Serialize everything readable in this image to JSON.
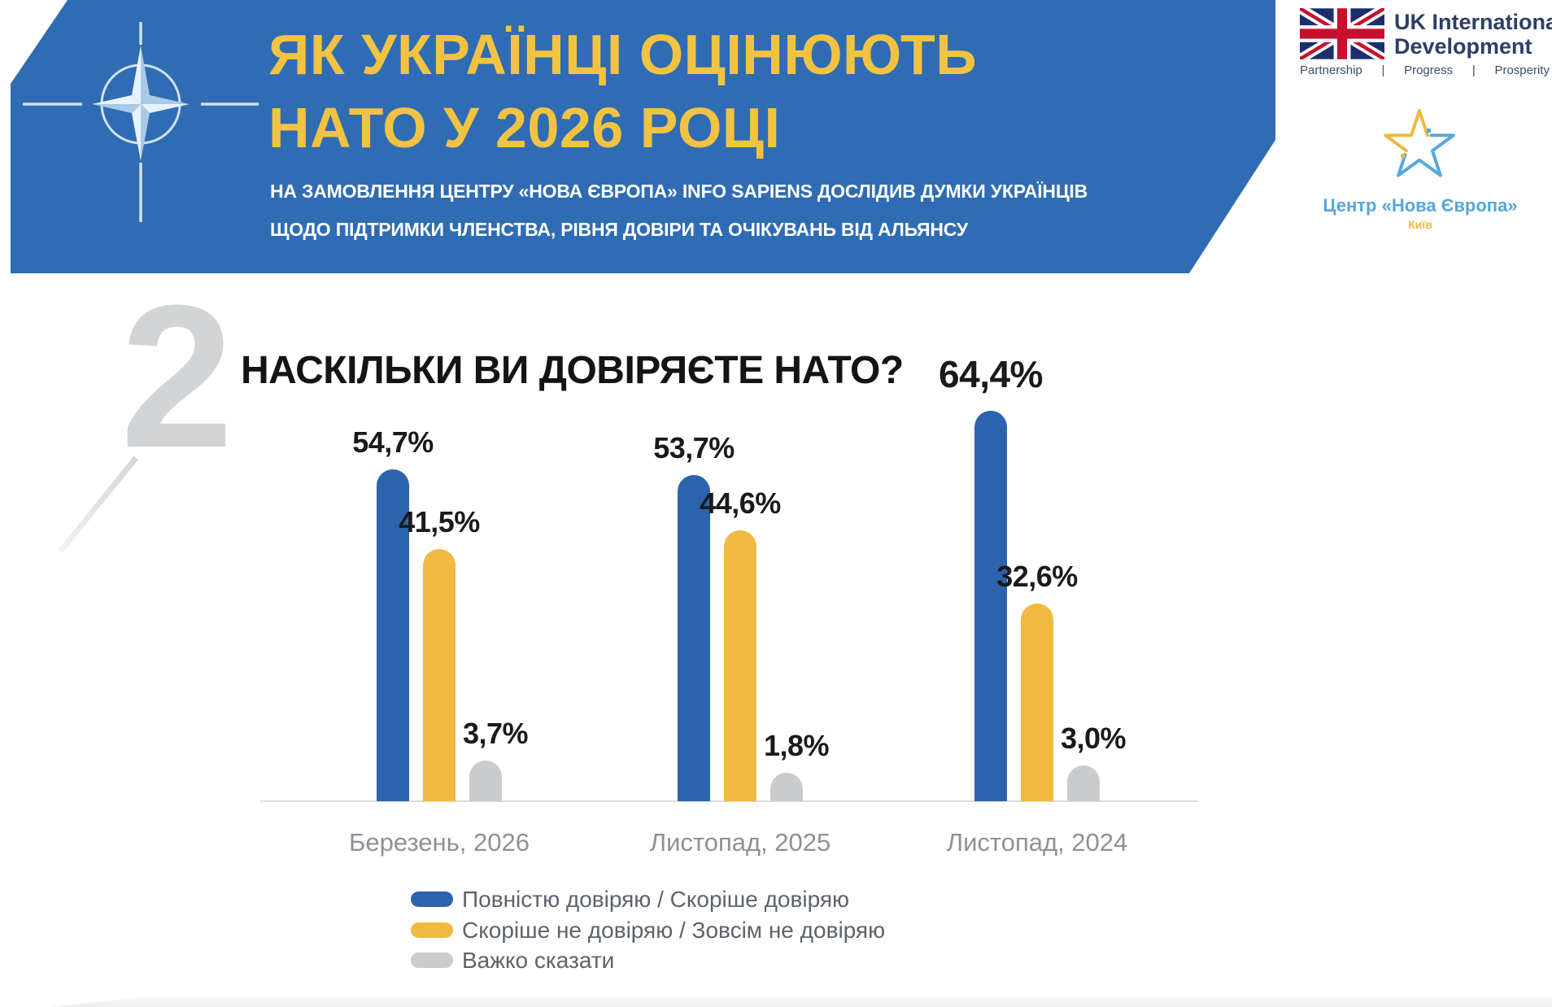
{
  "banner": {
    "title_line1": "ЯК УКРАЇНЦІ ОЦІНЮЮТЬ",
    "title_line2": "НАТО У 2026 РОЦІ",
    "subtitle_line1": "НА ЗАМОВЛЕННЯ ЦЕНТРУ «НОВА ЄВРОПА» INFO SAPIENS ДОСЛІДИВ ДУМКИ УКРАЇНЦІВ",
    "subtitle_line2": "ЩОДО ПІДТРИМКИ ЧЛЕНСТВА, РІВНЯ ДОВІРИ ТА ОЧІКУВАНЬ ВІД АЛЬЯНСУ",
    "banner_color": "#2F6CB3",
    "title_color": "#F2C343"
  },
  "logos": {
    "uk": {
      "line1": "UK International",
      "line2": "Development",
      "tagline": [
        "Partnership",
        "Progress",
        "Prosperity"
      ],
      "separator": "|"
    },
    "nova": {
      "name": "Центр «Нова Європа»",
      "city": "Київ"
    }
  },
  "section": {
    "number": "2",
    "question": "НАСКІЛЬКИ ВИ ДОВІРЯЄТЕ НАТО?"
  },
  "chart_data": {
    "type": "bar",
    "title": "НАСКІЛЬКИ ВИ ДОВІРЯЄТЕ НАТО?",
    "categories": [
      "Березень, 2026",
      "Листопад, 2025",
      "Листопад, 2024"
    ],
    "series": [
      {
        "name": "Повністю довіряю / Скоріше довіряю",
        "color": "#2D63AC",
        "values": [
          54.7,
          53.7,
          64.4
        ],
        "labels": [
          "54,7%",
          "53,7%",
          "64,4%"
        ]
      },
      {
        "name": "Скоріше не довіряю / Зовсім не довіряю",
        "color": "#F0B942",
        "values": [
          41.5,
          44.6,
          32.6
        ],
        "labels": [
          "41,5%",
          "44,6%",
          "32,6%"
        ]
      },
      {
        "name": "Важко сказати",
        "color": "#C9CBCD",
        "values": [
          3.7,
          1.8,
          3.0
        ],
        "labels": [
          "3,7%",
          "1,8%",
          "3,0%"
        ]
      }
    ],
    "ylim": [
      0,
      70
    ],
    "grid": false,
    "legend_position": "bottom",
    "highlighted_label": "64,4%"
  }
}
